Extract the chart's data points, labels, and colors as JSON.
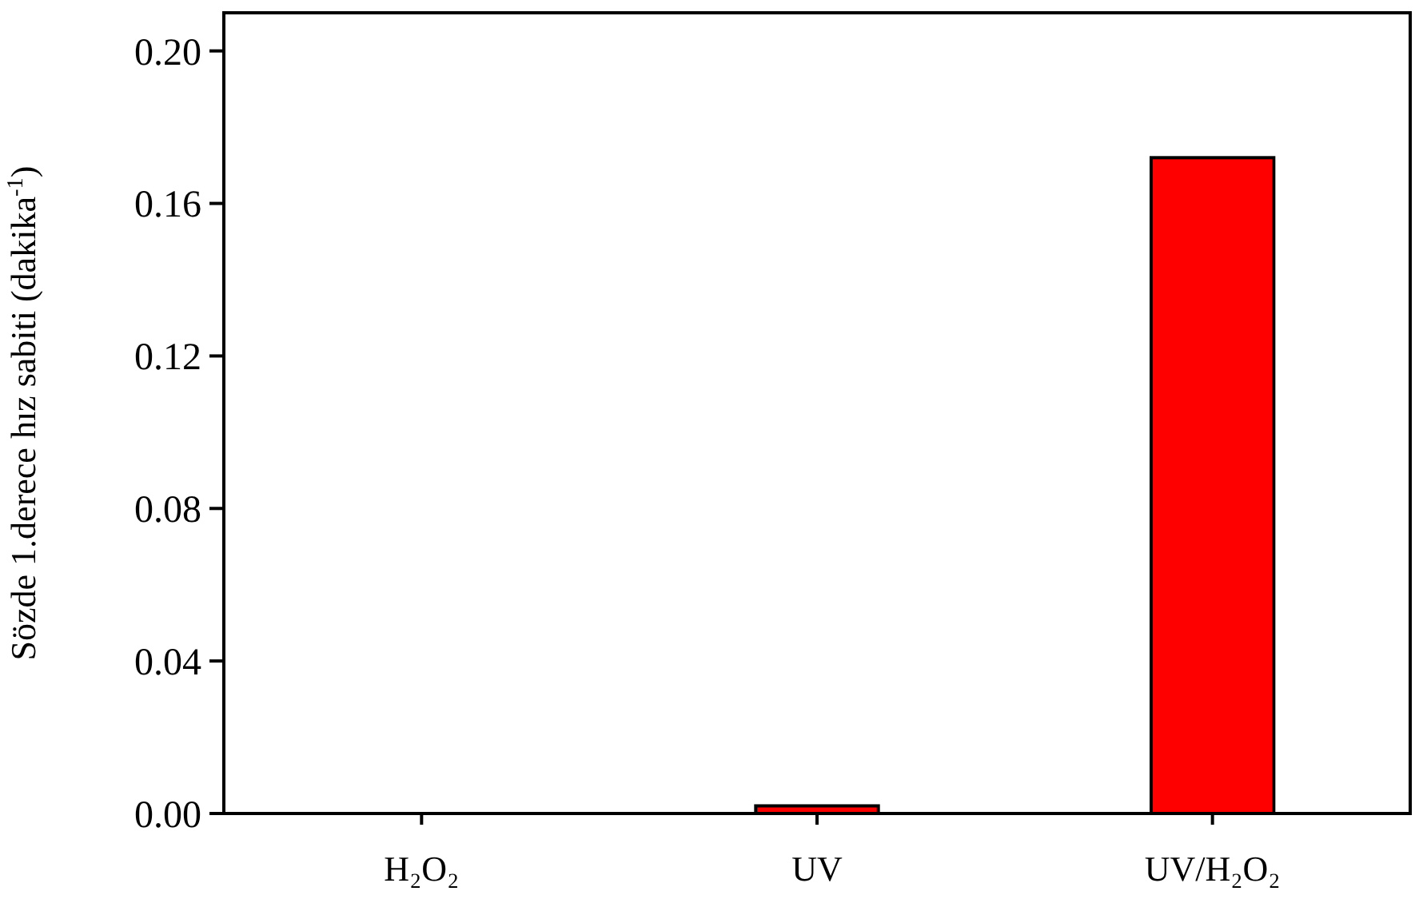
{
  "chart_data": {
    "type": "bar",
    "ylabel": "Sözde 1.derece hız sabiti (dakika$^{-1}$)",
    "categories": [
      "H₂O₂",
      "UV",
      "UV/H₂O₂"
    ],
    "values": [
      0,
      0.002,
      0.172
    ],
    "color": "#ff0000",
    "ylim": [
      0,
      0.21
    ],
    "yticks": [
      {
        "value": 0,
        "label": "0.00"
      },
      {
        "value": 0.04,
        "label": "0.04"
      },
      {
        "value": 0.08,
        "label": "0.08"
      },
      {
        "value": 0.12,
        "label": "0.12"
      },
      {
        "value": 0.16,
        "label": "0.16"
      },
      {
        "value": 0.2,
        "label": "0.20"
      }
    ],
    "grid": false
  }
}
